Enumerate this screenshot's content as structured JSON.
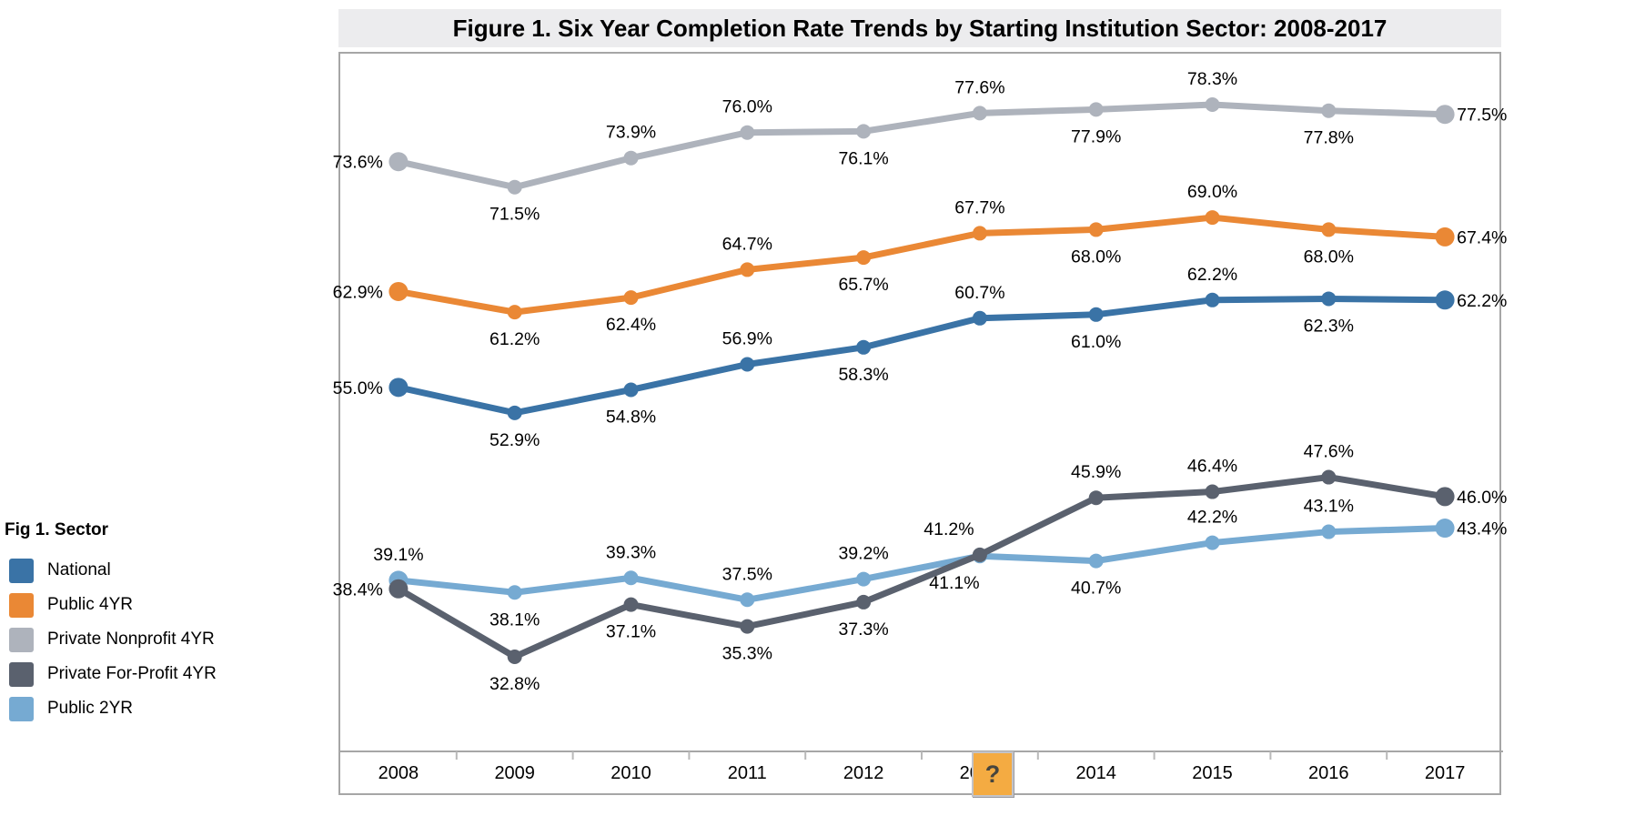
{
  "title": "Figure 1. Six Year Completion Rate Trends by Starting Institution Sector: 2008-2017",
  "legend": {
    "heading": "Fig 1. Sector",
    "items": [
      {
        "label": "National",
        "color": "#3a73a6"
      },
      {
        "label": "Public 4YR",
        "color": "#ea8835"
      },
      {
        "label": "Private Nonprofit 4YR",
        "color": "#aeb3bc"
      },
      {
        "label": "Private For-Profit 4YR",
        "color": "#5a616e"
      },
      {
        "label": "Public 2YR",
        "color": "#76aad2"
      }
    ]
  },
  "help_icon": {
    "glyph": "?",
    "bg": "#f4ab42"
  },
  "colors": {
    "title_bar_bg": "#ececee",
    "frame_border": "#a6a6a6",
    "tick": "#b9b9b9"
  },
  "chart_data": {
    "type": "line",
    "title": "Figure 1. Six Year Completion Rate Trends by Starting Institution Sector: 2008-2017",
    "x_categories": [
      "2008",
      "2009",
      "2010",
      "2011",
      "2012",
      "2013",
      "2014",
      "2015",
      "2016",
      "2017"
    ],
    "xlabel": "",
    "ylabel": "",
    "y_format": "percent",
    "ylim": [
      25,
      82.5
    ],
    "grid": false,
    "legend_position": "left",
    "series": [
      {
        "name": "National",
        "color": "#3a73a6",
        "values": [
          55.0,
          52.9,
          54.8,
          56.9,
          58.3,
          60.7,
          61.0,
          62.2,
          62.3,
          62.2
        ],
        "labels": [
          "55.0%",
          "52.9%",
          "54.8%",
          "56.9%",
          "58.3%",
          "60.7%",
          "61.0%",
          "62.2%",
          "62.3%",
          "62.2%"
        ],
        "label_positions": [
          "left",
          "below",
          "below",
          "above",
          "below",
          "above",
          "below",
          "above",
          "below",
          "right"
        ]
      },
      {
        "name": "Public 4YR",
        "color": "#ea8835",
        "values": [
          62.9,
          61.2,
          62.4,
          64.7,
          65.7,
          67.7,
          68.0,
          69.0,
          68.0,
          67.4
        ],
        "labels": [
          "62.9%",
          "61.2%",
          "62.4%",
          "64.7%",
          "65.7%",
          "67.7%",
          "68.0%",
          "69.0%",
          "68.0%",
          "67.4%"
        ],
        "label_positions": [
          "left",
          "below",
          "below",
          "above",
          "below",
          "above",
          "below",
          "above",
          "below",
          "right"
        ]
      },
      {
        "name": "Private Nonprofit 4YR",
        "color": "#aeb3bc",
        "values": [
          73.6,
          71.5,
          73.9,
          76.0,
          76.1,
          77.6,
          77.9,
          78.3,
          77.8,
          77.5
        ],
        "labels": [
          "73.6%",
          "71.5%",
          "73.9%",
          "76.0%",
          "76.1%",
          "77.6%",
          "77.9%",
          "78.3%",
          "77.8%",
          "77.5%"
        ],
        "label_positions": [
          "left",
          "below",
          "above",
          "above",
          "below",
          "above",
          "below",
          "above",
          "below",
          "right"
        ]
      },
      {
        "name": "Public 2YR",
        "color": "#76aad2",
        "values": [
          39.1,
          38.1,
          39.3,
          37.5,
          39.2,
          41.1,
          40.7,
          42.2,
          43.1,
          43.4
        ],
        "labels": [
          "39.1%",
          "38.1%",
          "39.3%",
          "37.5%",
          "39.2%",
          "41.1%",
          "40.7%",
          "42.2%",
          "43.1%",
          "43.4%"
        ],
        "label_positions": [
          "above",
          "below",
          "above",
          "above",
          "above",
          "below-left",
          "below",
          "above",
          "above",
          "right"
        ]
      },
      {
        "name": "Private For-Profit 4YR",
        "color": "#5a616e",
        "values": [
          38.4,
          32.8,
          37.1,
          35.3,
          37.3,
          41.2,
          45.9,
          46.4,
          47.6,
          46.0
        ],
        "labels": [
          "38.4%",
          "32.8%",
          "37.1%",
          "35.3%",
          "37.3%",
          "41.2%",
          "45.9%",
          "46.4%",
          "47.6%",
          "46.0%"
        ],
        "label_positions": [
          "left",
          "below",
          "below",
          "below",
          "below",
          "above-left",
          "above",
          "above",
          "above",
          "right"
        ]
      }
    ]
  }
}
